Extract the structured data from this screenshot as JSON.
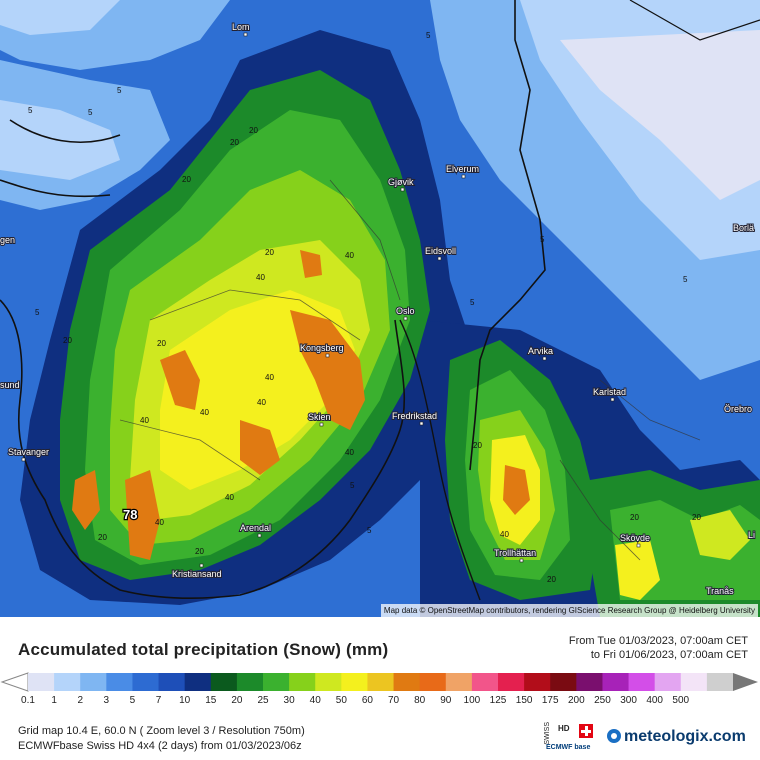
{
  "map": {
    "credit": "Map data © OpenStreetMap contributors, rendering GIScience Research Group @ Heidelberg University",
    "cities": [
      {
        "name": "Lom"
      },
      {
        "name": "Gjøvik"
      },
      {
        "name": "Elverum"
      },
      {
        "name": "Eidsvoll"
      },
      {
        "name": "Oslo"
      },
      {
        "name": "Kongsberg"
      },
      {
        "name": "Skien"
      },
      {
        "name": "Fredrikstad"
      },
      {
        "name": "Arvika"
      },
      {
        "name": "Karlstad"
      },
      {
        "name": "Örebro"
      },
      {
        "name": "Borlä"
      },
      {
        "name": "Arendal"
      },
      {
        "name": "Kristiansand"
      },
      {
        "name": "Stavanger"
      },
      {
        "name": "Trollhättan"
      },
      {
        "name": "Skövde"
      },
      {
        "name": "Tranås"
      },
      {
        "name": "sund"
      },
      {
        "name": "gen"
      },
      {
        "name": "Li"
      }
    ],
    "max_value_label": "78",
    "contour_labels": [
      "5",
      "20",
      "40",
      "5",
      "20",
      "40",
      "20",
      "40",
      "40",
      "40",
      "5",
      "20",
      "20",
      "40",
      "40",
      "20",
      "5",
      "5",
      "20",
      "40",
      "20",
      "20",
      "5",
      "5",
      "20",
      "20",
      "40",
      "40",
      "20",
      "5",
      "5",
      "5"
    ]
  },
  "legend": {
    "title": "Accumulated total precipitation (Snow) (mm)",
    "period_from": "From Tue 01/03/2023, 07:00am CET",
    "period_to": "to Fri 01/06/2023, 07:00am CET",
    "ticks": [
      "0.1",
      "1",
      "2",
      "3",
      "5",
      "7",
      "10",
      "15",
      "20",
      "25",
      "30",
      "40",
      "50",
      "60",
      "70",
      "80",
      "90",
      "100",
      "125",
      "150",
      "175",
      "200",
      "250",
      "300",
      "400",
      "500"
    ],
    "colors": [
      "#dfe3f5",
      "#b4d4fa",
      "#7fb6f2",
      "#4a8ce6",
      "#2d6bd2",
      "#1e4fb8",
      "#0f2f80",
      "#0b5a1e",
      "#1c8a2a",
      "#3bb12f",
      "#86d11b",
      "#cfe820",
      "#f4f01e",
      "#ecc521",
      "#e07a12",
      "#e86a18",
      "#f0a366",
      "#f2558a",
      "#e4204f",
      "#b20d1a",
      "#7a0b12",
      "#7a0f6e",
      "#a722b8",
      "#d34ee8",
      "#e3a5f1",
      "#f3e4f7",
      "#cfcfcf"
    ],
    "grid_info": "Grid map 10.4 E, 60.0 N ( Zoom level 3 / Resolution 750m)",
    "model_info": "ECMWFbase Swiss HD 4x4 (2 days) from  01/03/2023/06z",
    "brand": "meteologix.com",
    "swiss_label": "SWISS",
    "hd_label": "HD",
    "ecmwf_label": "ECMWF base"
  }
}
